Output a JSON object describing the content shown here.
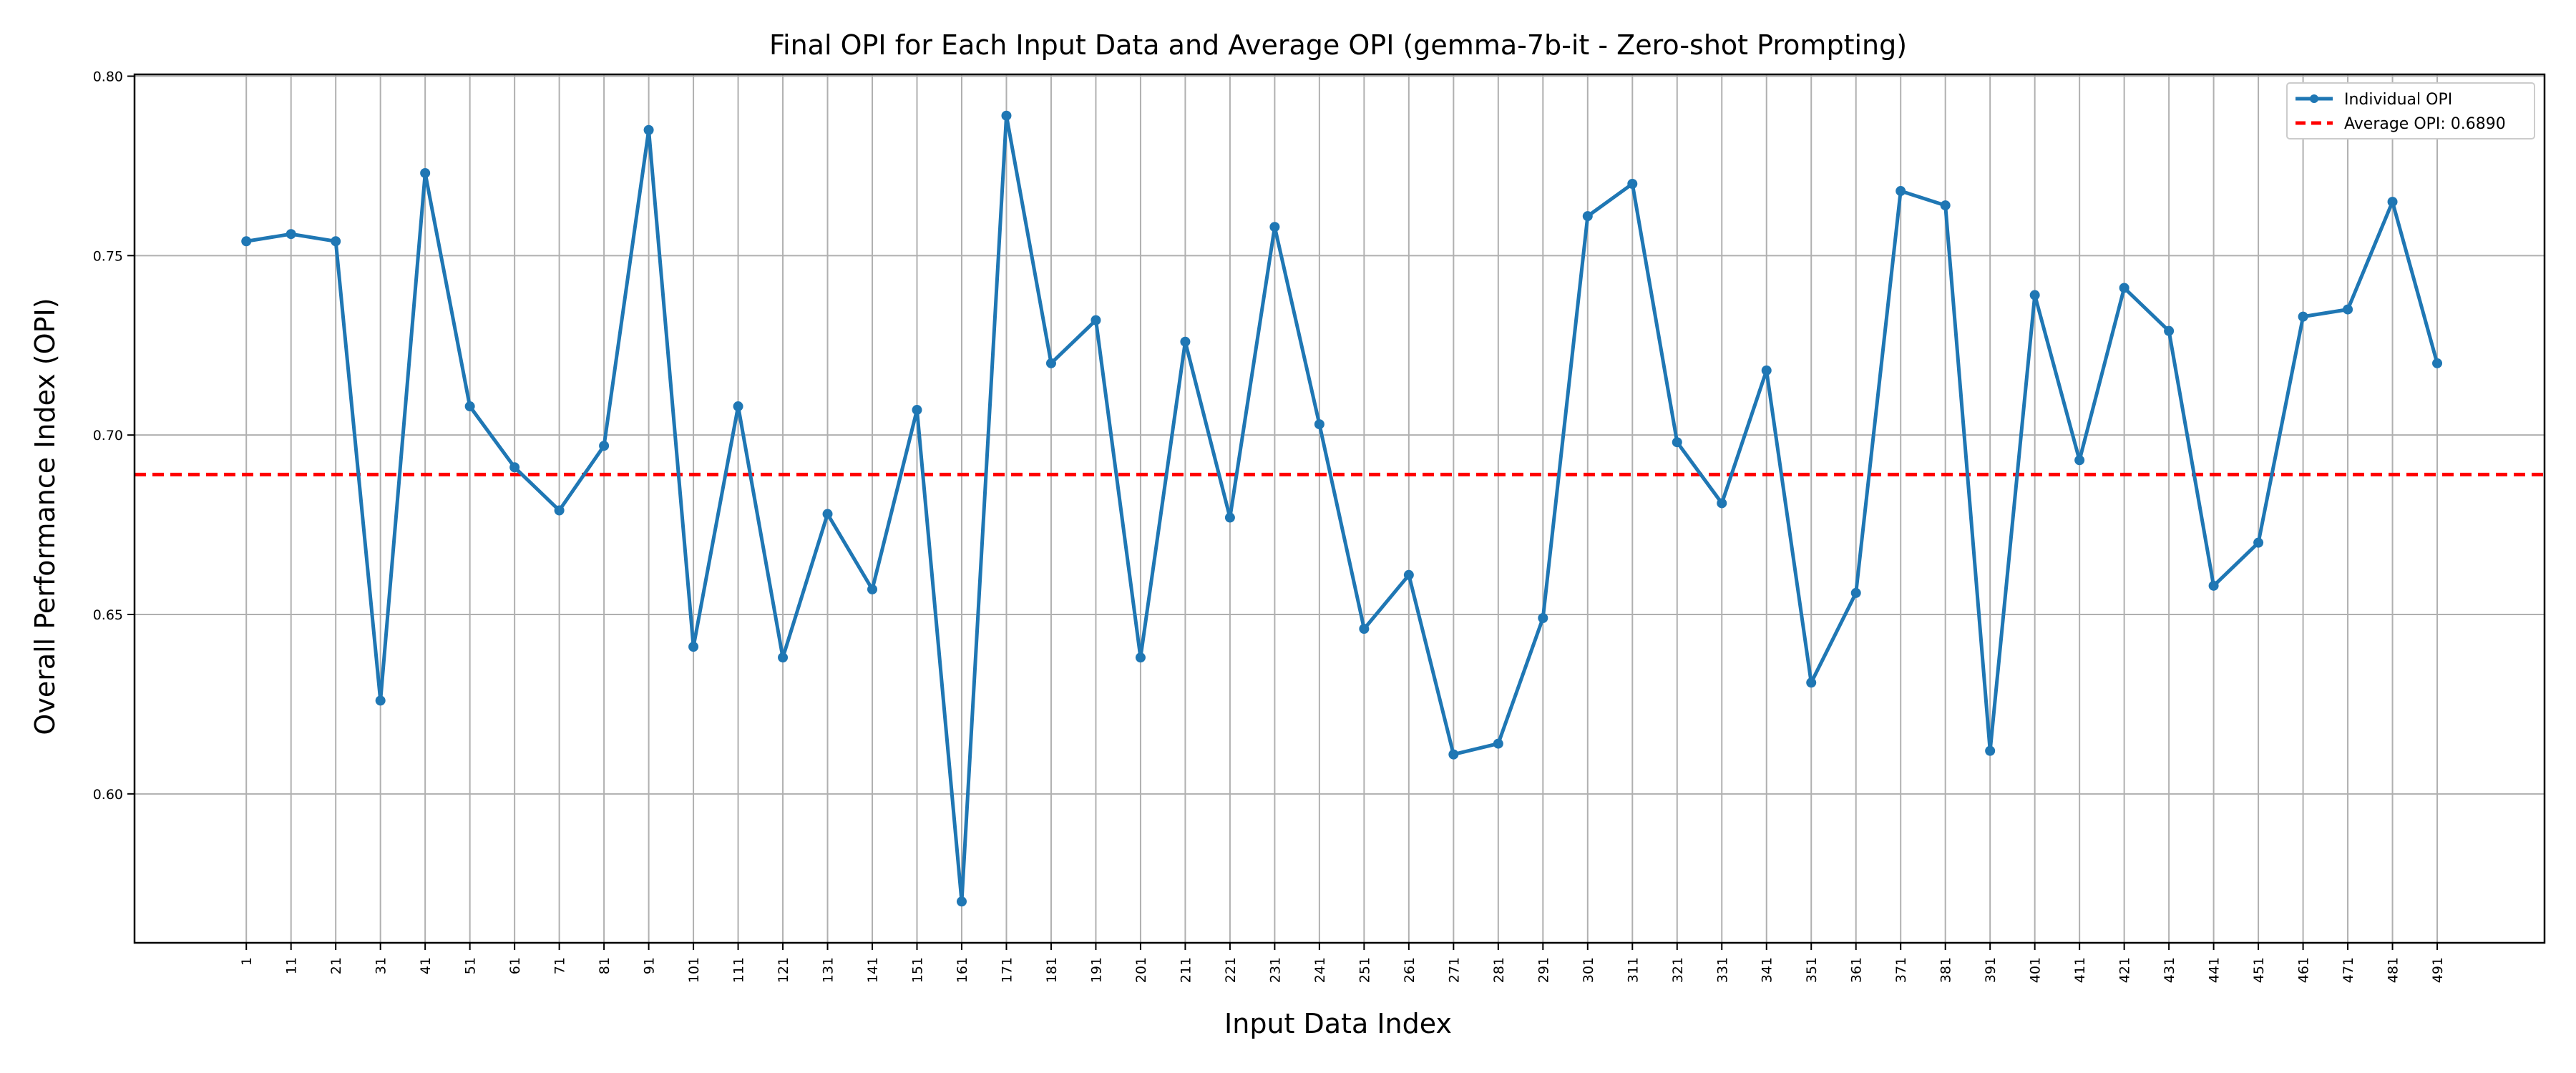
{
  "chart_data": {
    "type": "line",
    "title": "Final OPI for Each Input Data and Average OPI (gemma-7b-it - Zero-shot Prompting)",
    "xlabel": "Input Data Index",
    "ylabel": "Overall Performance Index (OPI)",
    "x": [
      1,
      11,
      21,
      31,
      41,
      51,
      61,
      71,
      81,
      91,
      101,
      111,
      121,
      131,
      141,
      151,
      161,
      171,
      181,
      191,
      201,
      211,
      221,
      231,
      241,
      251,
      261,
      271,
      281,
      291,
      301,
      311,
      321,
      331,
      341,
      351,
      361,
      371,
      381,
      391,
      401,
      411,
      421,
      431,
      441,
      451,
      461,
      471,
      481,
      491
    ],
    "series": [
      {
        "name": "Individual OPI",
        "color": "#1f77b4",
        "values": [
          0.754,
          0.756,
          0.754,
          0.626,
          0.773,
          0.708,
          0.691,
          0.679,
          0.697,
          0.785,
          0.641,
          0.708,
          0.638,
          0.678,
          0.657,
          0.707,
          0.57,
          0.789,
          0.72,
          0.732,
          0.638,
          0.726,
          0.677,
          0.758,
          0.703,
          0.646,
          0.661,
          0.611,
          0.614,
          0.649,
          0.761,
          0.77,
          0.698,
          0.681,
          0.718,
          0.631,
          0.656,
          0.768,
          0.764,
          0.612,
          0.739,
          0.693,
          0.741,
          0.729,
          0.658,
          0.67,
          0.733,
          0.735,
          0.765,
          0.72
        ]
      }
    ],
    "average": {
      "name": "Average OPI: 0.6890",
      "value": 0.689,
      "color": "#ff0000"
    },
    "yticks": [
      0.6,
      0.65,
      0.7,
      0.75,
      0.8
    ],
    "ytick_labels": [
      "0.60",
      "0.65",
      "0.70",
      "0.75",
      "0.80"
    ],
    "ylim": [
      0.5585,
      0.8005
    ],
    "xlim": [
      -24,
      515
    ],
    "grid": true,
    "legend_position": "top-right"
  }
}
